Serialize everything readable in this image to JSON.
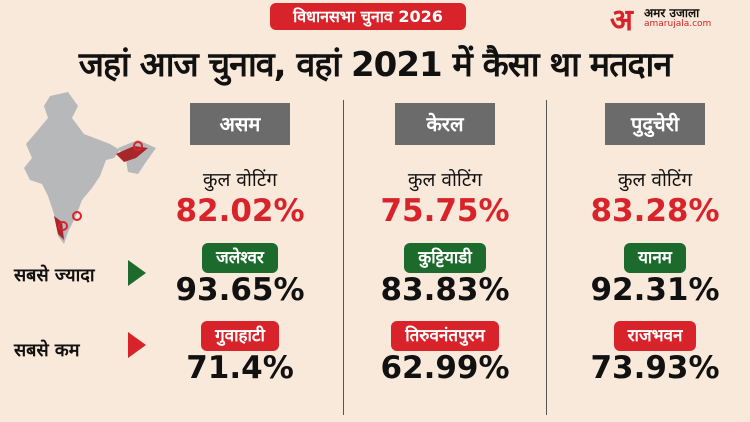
{
  "header": {
    "tag": "विधानसभा चुनाव 2026",
    "title": "जहां आज चुनाव, वहां 2021 में कैसा था मतदान"
  },
  "logo": {
    "mark": "अ",
    "name": "अमर उजाला",
    "url": "amarujala.com"
  },
  "labels": {
    "total": "कुल वोटिंग",
    "highest": "सबसे ज्यादा",
    "lowest": "सबसे कम"
  },
  "colors": {
    "accent_red": "#d8232a",
    "green": "#1d6b2c",
    "state_box": "#6b6b6b",
    "background": "#f9e9da"
  },
  "states": [
    {
      "name": "असम",
      "total": "82.02%",
      "highest_place": "जलेश्वर",
      "highest_value": "93.65%",
      "lowest_place": "गुवाहाटी",
      "lowest_value": "71.4%"
    },
    {
      "name": "केरल",
      "total": "75.75%",
      "highest_place": "कुट्टियाडी",
      "highest_value": "83.83%",
      "lowest_place": "तिरुवनंतपुरम",
      "lowest_value": "62.99%"
    },
    {
      "name": "पुदुचेरी",
      "total": "83.28%",
      "highest_place": "यानम",
      "highest_value": "92.31%",
      "lowest_place": "राजभवन",
      "lowest_value": "73.93%"
    }
  ]
}
